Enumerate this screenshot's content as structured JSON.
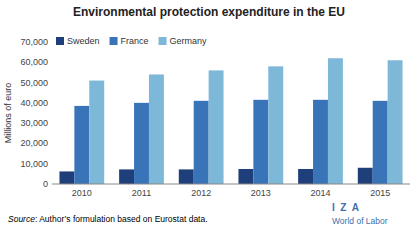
{
  "chart_data": {
    "type": "bar",
    "title": "Environmental protection expenditure in the EU",
    "ylabel": "Millions of euro",
    "categories": [
      "2010",
      "2011",
      "2012",
      "2013",
      "2014",
      "2015"
    ],
    "series": [
      {
        "name": "Sweden",
        "color": "#1F3F7A",
        "values": [
          6200,
          7200,
          7200,
          7400,
          7400,
          8000
        ]
      },
      {
        "name": "France",
        "color": "#3A74B8",
        "values": [
          38500,
          40000,
          41000,
          41500,
          41500,
          41000
        ]
      },
      {
        "name": "Germany",
        "color": "#7EB8D9",
        "values": [
          51000,
          54000,
          56000,
          58000,
          62000,
          61000
        ]
      }
    ],
    "ylim": [
      0,
      70000
    ],
    "yticks": [
      0,
      {
        "value": 10000,
        "label": "10,000"
      },
      {
        "value": 20000,
        "label": "20,000"
      },
      {
        "value": 30000,
        "label": "30,000"
      },
      {
        "value": 40000,
        "label": "40,000"
      },
      {
        "value": 50000,
        "label": "50,000"
      },
      {
        "value": 60000,
        "label": "60,000"
      },
      {
        "value": 70000,
        "label": "70,000"
      }
    ],
    "grid": false,
    "legend": "upper left",
    "annotations": [
      "Source",
      ": Author’s formulation based on Eurostat data.",
      "I  Z  A",
      "World of Labor"
    ]
  }
}
